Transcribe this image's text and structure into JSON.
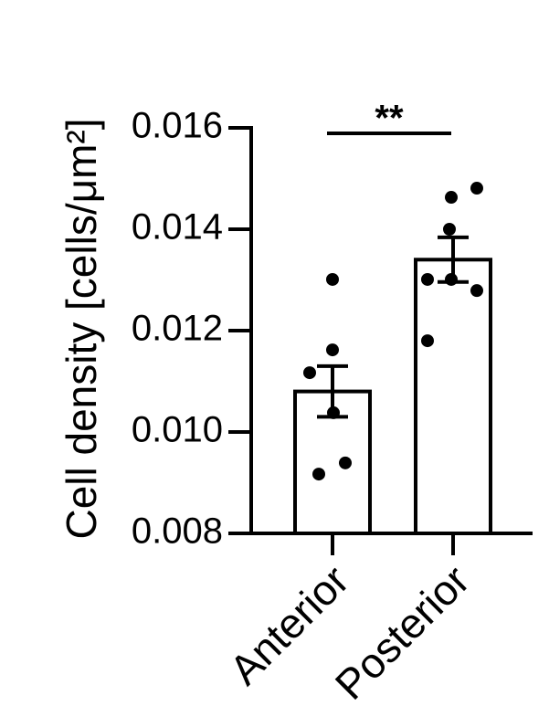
{
  "chart_data": {
    "type": "bar",
    "ylabel": "Cell density  [cells/μm²]",
    "categories": [
      "Anterior",
      "Posterior"
    ],
    "values": [
      0.0108,
      0.0134
    ],
    "errors": [
      0.0005,
      0.00044
    ],
    "points": [
      [
        0.01301,
        0.01162,
        0.01117,
        0.01038,
        0.00917,
        0.00939
      ],
      [
        0.01463,
        0.01481,
        0.014,
        0.01301,
        0.01301,
        0.01279,
        0.0118
      ]
    ],
    "color": "#ffffff",
    "ylim": [
      0.008,
      0.016
    ],
    "yticks": [
      0.008,
      {
        "value": 0.01,
        "label": "0.010"
      },
      0.012,
      0.014,
      0.016
    ],
    "annotation": "**"
  }
}
